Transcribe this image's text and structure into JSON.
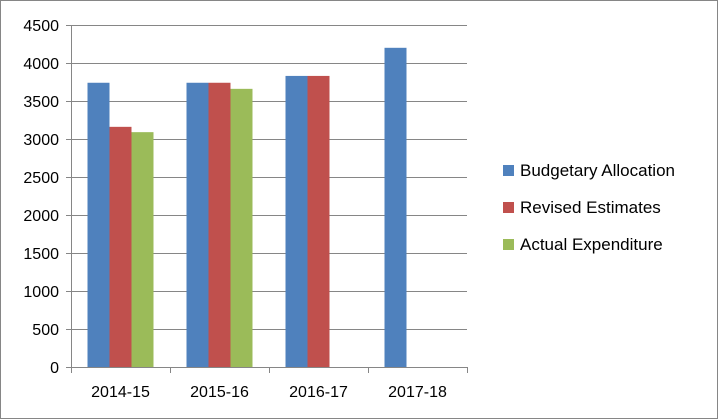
{
  "chart_data": {
    "type": "bar",
    "title": "",
    "xlabel": "",
    "ylabel": "",
    "categories": [
      "2014-15",
      "2015-16",
      "2016-17",
      "2017-18"
    ],
    "series": [
      {
        "name": "Budgetary Allocation",
        "color": "#4F81BD",
        "values": [
          3740,
          3740,
          3830,
          4200
        ]
      },
      {
        "name": "Revised Estimates",
        "color": "#C0504D",
        "values": [
          3160,
          3740,
          3830,
          null
        ]
      },
      {
        "name": "Actual Expenditure",
        "color": "#9BBB59",
        "values": [
          3090,
          3660,
          null,
          null
        ]
      }
    ],
    "ylim": [
      0,
      4500
    ],
    "yticks": [
      0,
      500,
      1000,
      1500,
      2000,
      2500,
      3000,
      3500,
      4000,
      4500
    ],
    "grid": true,
    "legend_position": "right"
  }
}
